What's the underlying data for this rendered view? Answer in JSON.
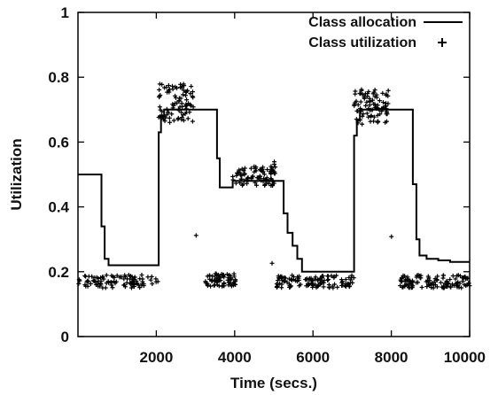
{
  "chart_data": {
    "type": "line",
    "title": "",
    "xlabel": "Time (secs.)",
    "ylabel": "Utilization",
    "xlim": [
      0,
      10000
    ],
    "ylim": [
      0,
      1
    ],
    "xticks": [
      2000,
      4000,
      6000,
      8000,
      10000
    ],
    "yticks": [
      0,
      0.2,
      0.4,
      0.6,
      0.8,
      1
    ],
    "xtick_labels": [
      "2000",
      "4000",
      "6000",
      "8000",
      "10000"
    ],
    "ytick_labels": [
      "0",
      "0.2",
      "0.4",
      "0.6",
      "0.8",
      "1"
    ],
    "grid": false,
    "legend_position": "top-right",
    "series": [
      {
        "name": "Class allocation",
        "style": "step-line",
        "color": "#000000",
        "x": [
          0,
          600,
          600,
          680,
          680,
          780,
          780,
          2060,
          2060,
          2120,
          2120,
          2200,
          2200,
          3550,
          3550,
          3620,
          3620,
          3950,
          3950,
          5250,
          5250,
          5350,
          5350,
          5480,
          5480,
          5600,
          5600,
          5720,
          5720,
          7050,
          7050,
          7120,
          7120,
          7200,
          7200,
          8550,
          8550,
          8640,
          8640,
          8720,
          8720,
          8900,
          8900,
          9200,
          9200,
          9500,
          9500,
          10000
        ],
        "y": [
          0.5,
          0.5,
          0.34,
          0.34,
          0.24,
          0.24,
          0.22,
          0.22,
          0.63,
          0.63,
          0.68,
          0.68,
          0.7,
          0.7,
          0.55,
          0.55,
          0.46,
          0.46,
          0.48,
          0.48,
          0.38,
          0.38,
          0.32,
          0.32,
          0.28,
          0.28,
          0.24,
          0.24,
          0.2,
          0.2,
          0.62,
          0.62,
          0.67,
          0.67,
          0.7,
          0.7,
          0.47,
          0.47,
          0.3,
          0.3,
          0.25,
          0.25,
          0.24,
          0.24,
          0.235,
          0.235,
          0.23,
          0.23
        ]
      },
      {
        "name": "Class utilization",
        "style": "scatter",
        "marker": "plus",
        "color": "#000000",
        "segments": [
          {
            "x_range": [
              0,
              2050
            ],
            "y_mean": 0.17,
            "y_spread": 0.02,
            "count": 100
          },
          {
            "x_range": [
              2050,
              2950
            ],
            "y_mean": 0.72,
            "y_spread": 0.06,
            "count": 90
          },
          {
            "x_range": [
              2950,
              3350
            ],
            "y_mean": null,
            "y_spread": 0,
            "count": 0
          },
          {
            "x_range": [
              3000,
              3080
            ],
            "y_mean": 0.31,
            "y_spread": 0.005,
            "count": 1
          },
          {
            "x_range": [
              3250,
              4050
            ],
            "y_mean": 0.175,
            "y_spread": 0.02,
            "count": 70
          },
          {
            "x_range": [
              3950,
              5050
            ],
            "y_mean": 0.495,
            "y_spread": 0.03,
            "count": 90
          },
          {
            "x_range": [
              4980,
              5040
            ],
            "y_mean": 0.55,
            "y_spread": 0.02,
            "count": 2
          },
          {
            "x_range": [
              4950,
              5000
            ],
            "y_mean": 0.22,
            "y_spread": 0.01,
            "count": 1
          },
          {
            "x_range": [
              5050,
              7050
            ],
            "y_mean": 0.17,
            "y_spread": 0.02,
            "count": 120
          },
          {
            "x_range": [
              7050,
              7950
            ],
            "y_mean": 0.71,
            "y_spread": 0.055,
            "count": 90
          },
          {
            "x_range": [
              7950,
              8030
            ],
            "y_mean": 0.31,
            "y_spread": 0.005,
            "count": 1
          },
          {
            "x_range": [
              8200,
              10000
            ],
            "y_mean": 0.17,
            "y_spread": 0.02,
            "count": 120
          }
        ]
      }
    ]
  }
}
